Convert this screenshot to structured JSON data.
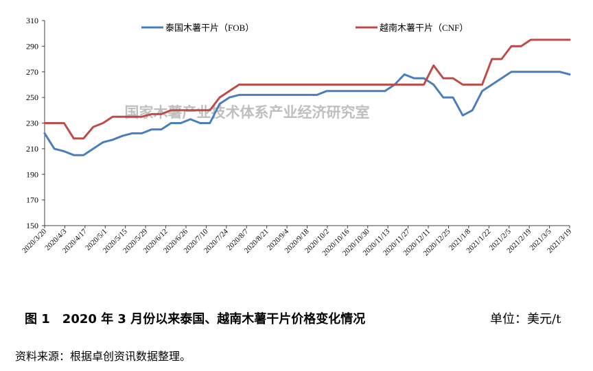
{
  "caption": {
    "figure_title": "图 1　2020 年 3 月份以来泰国、越南木薯干片价格变化情况",
    "unit": "单位：美元/t"
  },
  "source_note": "资料来源：根据卓创资讯数据整理。",
  "watermark": "国家木薯产业技术体系产业经济研究室",
  "colors": {
    "thailand": "#4a7ebb",
    "vietnam": "#be4b48",
    "axis": "#404040",
    "watermark": "#bfbfbf"
  },
  "chart_data": {
    "type": "line",
    "title": "",
    "xlabel": "",
    "ylabel": "",
    "ylim": [
      150,
      310
    ],
    "yticks": [
      150,
      170,
      190,
      210,
      230,
      250,
      270,
      290,
      310
    ],
    "grid": false,
    "legend": "top",
    "x_tick_labels": [
      "2020/3/20",
      "2020/4/3",
      "2020/4/17",
      "2020/5/1",
      "2020/5/15",
      "2020/5/29",
      "2020/6/12",
      "2020/6/26",
      "2020/7/10",
      "2020/7/24",
      "2020/8/7",
      "2020/8/21",
      "2020/9/4",
      "2020/9/18",
      "2020/10/2",
      "2020/10/16",
      "2020/10/30",
      "2020/11/13",
      "2020/11/27",
      "2020/12/11",
      "2020/12/25",
      "2021/1/8",
      "2021/1/22",
      "2021/2/5",
      "2021/2/19",
      "2021/3/5",
      "2021/3/19"
    ],
    "series": [
      {
        "name": "泰国木薯干片（FOB）",
        "color": "#4a7ebb",
        "values": [
          222,
          210,
          208,
          205,
          205,
          210,
          215,
          217,
          220,
          222,
          222,
          225,
          225,
          230,
          230,
          233,
          230,
          230,
          245,
          250,
          252,
          252,
          252,
          252,
          252,
          252,
          252,
          252,
          252,
          255,
          255,
          255,
          255,
          255,
          255,
          255,
          260,
          268,
          265,
          265,
          260,
          250,
          250,
          236,
          240,
          255,
          260,
          265,
          270,
          270,
          270,
          270,
          270,
          270,
          268
        ]
      },
      {
        "name": "越南木薯干片（CNF）",
        "color": "#be4b48",
        "values": [
          230,
          230,
          230,
          218,
          218,
          227,
          230,
          235,
          235,
          235,
          235,
          237,
          237,
          240,
          240,
          240,
          240,
          240,
          250,
          255,
          260,
          260,
          260,
          260,
          260,
          260,
          260,
          260,
          260,
          260,
          260,
          260,
          260,
          260,
          260,
          260,
          260,
          260,
          260,
          260,
          275,
          265,
          265,
          260,
          260,
          260,
          280,
          280,
          290,
          290,
          295,
          295,
          295,
          295,
          295
        ]
      }
    ]
  }
}
